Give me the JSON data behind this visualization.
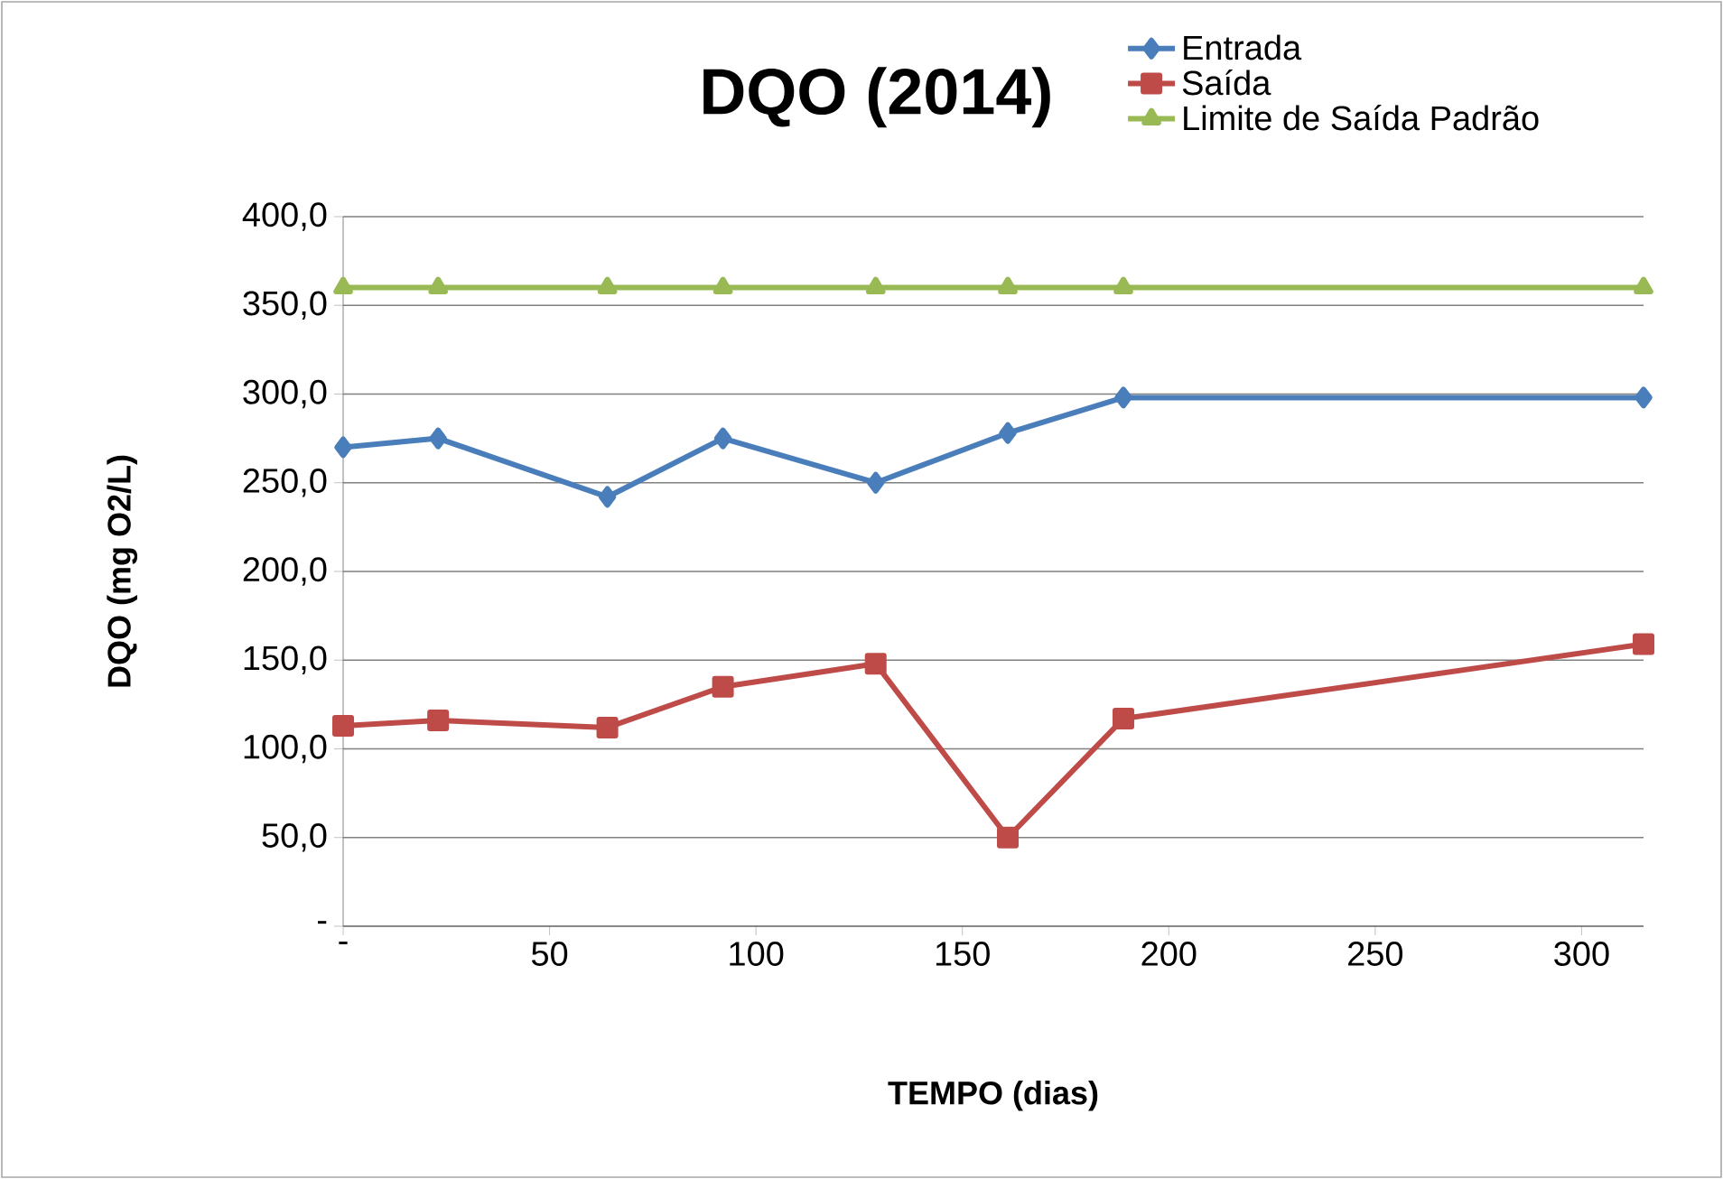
{
  "chart_data": {
    "type": "line",
    "title": "DQO (2014)",
    "xlabel": "TEMPO (dias)",
    "ylabel": "DQO (mg O2/L)",
    "x": [
      0,
      23,
      64,
      92,
      129,
      161,
      189,
      315
    ],
    "series": [
      {
        "name": "Entrada",
        "color": "#4a7ebb",
        "marker": "diamond",
        "values": [
          270,
          275,
          242,
          275,
          250,
          278,
          298,
          298
        ]
      },
      {
        "name": "Saída",
        "color": "#be4b48",
        "marker": "square",
        "values": [
          113,
          116,
          112,
          135,
          148,
          50,
          117,
          159
        ]
      },
      {
        "name": "Limite de Saída Padrão",
        "color": "#98b954",
        "marker": "triangle",
        "values": [
          360,
          360,
          360,
          360,
          360,
          360,
          360,
          360
        ]
      }
    ],
    "xlim": [
      0,
      315
    ],
    "ylim": [
      0,
      400
    ],
    "xticks": [
      {
        "value": 0,
        "label": "-"
      },
      50,
      100,
      150,
      200,
      250,
      300
    ],
    "yticks": [
      {
        "value": 0,
        "label": "-"
      },
      {
        "value": 50,
        "label": "50,0"
      },
      {
        "value": 100,
        "label": "100,0"
      },
      {
        "value": 150,
        "label": "150,0"
      },
      {
        "value": 200,
        "label": "200,0"
      },
      {
        "value": 250,
        "label": "250,0"
      },
      {
        "value": 300,
        "label": "300,0"
      },
      {
        "value": 350,
        "label": "350,0"
      },
      {
        "value": 400,
        "label": "400,0"
      }
    ],
    "grid": "y",
    "legend": "top right",
    "line_style": "solid"
  }
}
